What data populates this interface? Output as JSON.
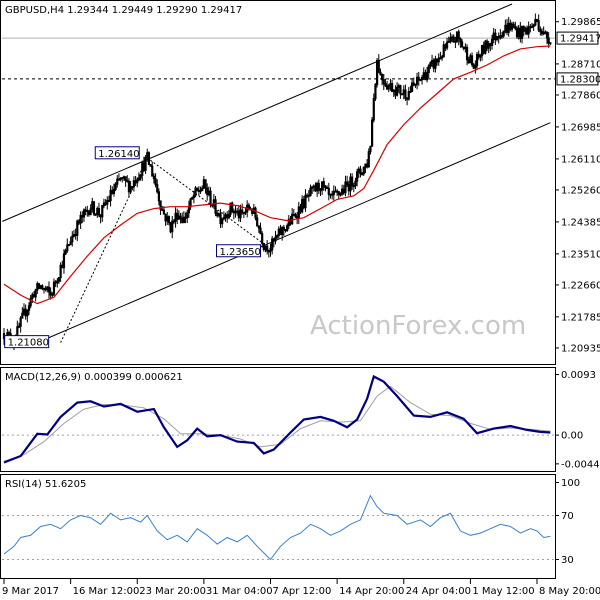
{
  "chart_data": {
    "type": "candlestick",
    "symbol_header": "GBPUSD,H4  1.29344 1.29449 1.29290 1.29417",
    "watermark": "ActionForex.com",
    "price_axis": {
      "ylim": [
        1.2055,
        1.3035
      ],
      "ticks": [
        "1.29865",
        "1.28710",
        "1.27860",
        "1.26985",
        "1.26110",
        "1.25260",
        "1.24385",
        "1.23510",
        "1.22660",
        "1.21785",
        "1.20935"
      ],
      "tick_values": [
        1.29865,
        1.2871,
        1.2786,
        1.26985,
        1.2611,
        1.2526,
        1.24385,
        1.2351,
        1.2266,
        1.21785,
        1.20935
      ]
    },
    "current_price": {
      "label": "1.29417",
      "value": 1.29417
    },
    "level_line": {
      "label": "1.28300",
      "value": 1.283
    },
    "time_axis": {
      "labels": [
        "9 Mar 2017",
        "16 Mar 12:00",
        "23 Mar 20:00",
        "31 Mar 04:00",
        "7 Apr 12:00",
        "14 Apr 20:00",
        "24 Apr 04:00",
        "1 May 12:00",
        "8 May 20:00"
      ],
      "bar_index": [
        0,
        40,
        80,
        120,
        160,
        200,
        240,
        280,
        320
      ]
    },
    "close_path": [
      [
        0,
        1.2133
      ],
      [
        6,
        1.2112
      ],
      [
        12,
        1.2185
      ],
      [
        18,
        1.2246
      ],
      [
        22,
        1.2262
      ],
      [
        28,
        1.2238
      ],
      [
        34,
        1.2315
      ],
      [
        40,
        1.2392
      ],
      [
        46,
        1.2445
      ],
      [
        52,
        1.2482
      ],
      [
        58,
        1.246
      ],
      [
        64,
        1.2512
      ],
      [
        70,
        1.2555
      ],
      [
        76,
        1.2535
      ],
      [
        82,
        1.258
      ],
      [
        86,
        1.2612
      ],
      [
        90,
        1.256
      ],
      [
        95,
        1.247
      ],
      [
        100,
        1.2425
      ],
      [
        104,
        1.2462
      ],
      [
        108,
        1.2445
      ],
      [
        114,
        1.251
      ],
      [
        120,
        1.2538
      ],
      [
        125,
        1.249
      ],
      [
        130,
        1.245
      ],
      [
        136,
        1.2475
      ],
      [
        142,
        1.2455
      ],
      [
        148,
        1.248
      ],
      [
        152,
        1.244
      ],
      [
        156,
        1.2378
      ],
      [
        160,
        1.2369
      ],
      [
        166,
        1.241
      ],
      [
        172,
        1.244
      ],
      [
        178,
        1.248
      ],
      [
        184,
        1.2515
      ],
      [
        190,
        1.254
      ],
      [
        196,
        1.25
      ],
      [
        202,
        1.252
      ],
      [
        208,
        1.2545
      ],
      [
        214,
        1.2575
      ],
      [
        218,
        1.26
      ],
      [
        220,
        1.2655
      ],
      [
        222,
        1.278
      ],
      [
        224,
        1.288
      ],
      [
        226,
        1.284
      ],
      [
        230,
        1.2815
      ],
      [
        236,
        1.28
      ],
      [
        242,
        1.279
      ],
      [
        248,
        1.282
      ],
      [
        254,
        1.285
      ],
      [
        260,
        1.288
      ],
      [
        266,
        1.292
      ],
      [
        272,
        1.2945
      ],
      [
        278,
        1.29
      ],
      [
        282,
        1.286
      ],
      [
        286,
        1.29
      ],
      [
        292,
        1.2935
      ],
      [
        298,
        1.296
      ],
      [
        304,
        1.2975
      ],
      [
        310,
        1.2955
      ],
      [
        316,
        1.297
      ],
      [
        320,
        1.299
      ],
      [
        324,
        1.295
      ],
      [
        328,
        1.2942
      ]
    ],
    "moving_average": [
      [
        0,
        1.2268
      ],
      [
        10,
        1.2238
      ],
      [
        20,
        1.2215
      ],
      [
        30,
        1.2232
      ],
      [
        40,
        1.229
      ],
      [
        50,
        1.2345
      ],
      [
        60,
        1.2395
      ],
      [
        70,
        1.243
      ],
      [
        80,
        1.2462
      ],
      [
        90,
        1.2475
      ],
      [
        100,
        1.248
      ],
      [
        110,
        1.248
      ],
      [
        120,
        1.2485
      ],
      [
        130,
        1.249
      ],
      [
        140,
        1.2483
      ],
      [
        150,
        1.247
      ],
      [
        160,
        1.245
      ],
      [
        170,
        1.2442
      ],
      [
        180,
        1.245
      ],
      [
        190,
        1.2475
      ],
      [
        200,
        1.25
      ],
      [
        210,
        1.251
      ],
      [
        216,
        1.253
      ],
      [
        222,
        1.258
      ],
      [
        230,
        1.265
      ],
      [
        240,
        1.2705
      ],
      [
        250,
        1.275
      ],
      [
        260,
        1.279
      ],
      [
        270,
        1.283
      ],
      [
        280,
        1.2848
      ],
      [
        290,
        1.2868
      ],
      [
        300,
        1.2893
      ],
      [
        310,
        1.2912
      ],
      [
        320,
        1.2918
      ],
      [
        328,
        1.292
      ]
    ],
    "channel": {
      "upper": [
        [
          -1,
          1.244
        ],
        [
          305,
          1.3035
        ]
      ],
      "lower": [
        [
          20,
          1.2108
        ],
        [
          328,
          1.271
        ]
      ]
    },
    "annotations": [
      {
        "label": "1.26140",
        "bar": 86,
        "value": 1.2614
      },
      {
        "label": "1.23650",
        "bar": 160,
        "value": 1.2365
      },
      {
        "label": "1.21080",
        "bar": 4,
        "value": 1.2108
      }
    ],
    "macd": {
      "title": "MACD(12,26,9) 0.000399 0.000621",
      "ylim": [
        -0.0052,
        0.01
      ],
      "ticks": [
        "0.0093",
        "0.00",
        "-0.004412"
      ],
      "tick_values": [
        0.0093,
        0.0,
        -0.004412
      ],
      "macd_line": [
        [
          0,
          -0.0042
        ],
        [
          10,
          -0.0032
        ],
        [
          20,
          0.0002
        ],
        [
          26,
          0.0001
        ],
        [
          34,
          0.0028
        ],
        [
          44,
          0.005
        ],
        [
          52,
          0.0052
        ],
        [
          60,
          0.0044
        ],
        [
          70,
          0.0048
        ],
        [
          80,
          0.0036
        ],
        [
          90,
          0.004
        ],
        [
          96,
          0.0012
        ],
        [
          104,
          -0.0018
        ],
        [
          110,
          -0.0008
        ],
        [
          116,
          0.001
        ],
        [
          122,
          -0.0002
        ],
        [
          130,
          0.0
        ],
        [
          140,
          -0.001
        ],
        [
          150,
          -0.0012
        ],
        [
          156,
          -0.0028
        ],
        [
          162,
          -0.0022
        ],
        [
          172,
          0.0004
        ],
        [
          180,
          0.0024
        ],
        [
          190,
          0.0028
        ],
        [
          198,
          0.0022
        ],
        [
          206,
          0.0012
        ],
        [
          212,
          0.0024
        ],
        [
          218,
          0.0056
        ],
        [
          222,
          0.009
        ],
        [
          228,
          0.0082
        ],
        [
          236,
          0.006
        ],
        [
          246,
          0.003
        ],
        [
          256,
          0.0028
        ],
        [
          266,
          0.0035
        ],
        [
          276,
          0.0025
        ],
        [
          284,
          0.0003
        ],
        [
          294,
          0.001
        ],
        [
          304,
          0.0014
        ],
        [
          314,
          0.0008
        ],
        [
          322,
          0.0005
        ],
        [
          328,
          0.0004
        ]
      ],
      "signal_line": [
        [
          0,
          -0.004
        ],
        [
          12,
          -0.003
        ],
        [
          24,
          -0.001
        ],
        [
          36,
          0.0018
        ],
        [
          48,
          0.004
        ],
        [
          60,
          0.0047
        ],
        [
          72,
          0.0046
        ],
        [
          84,
          0.0042
        ],
        [
          96,
          0.0025
        ],
        [
          106,
          0.0002
        ],
        [
          118,
          0.0002
        ],
        [
          130,
          0.0
        ],
        [
          142,
          -0.0006
        ],
        [
          154,
          -0.0018
        ],
        [
          166,
          -0.0014
        ],
        [
          178,
          0.001
        ],
        [
          190,
          0.0022
        ],
        [
          202,
          0.002
        ],
        [
          214,
          0.0022
        ],
        [
          224,
          0.006
        ],
        [
          232,
          0.0075
        ],
        [
          244,
          0.005
        ],
        [
          256,
          0.0032
        ],
        [
          268,
          0.003
        ],
        [
          280,
          0.0018
        ],
        [
          292,
          0.0009
        ],
        [
          304,
          0.0011
        ],
        [
          316,
          0.0009
        ],
        [
          328,
          0.0006
        ]
      ]
    },
    "rsi": {
      "title": "RSI(14) 51.6205",
      "ylim": [
        15,
        105
      ],
      "ticks": [
        "100",
        "70",
        "30"
      ],
      "tick_values": [
        100,
        70,
        30
      ],
      "line": [
        [
          0,
          35
        ],
        [
          6,
          42
        ],
        [
          10,
          50
        ],
        [
          16,
          52
        ],
        [
          22,
          60
        ],
        [
          28,
          62
        ],
        [
          34,
          58
        ],
        [
          40,
          66
        ],
        [
          46,
          70
        ],
        [
          52,
          68
        ],
        [
          58,
          62
        ],
        [
          64,
          72
        ],
        [
          70,
          66
        ],
        [
          76,
          68
        ],
        [
          82,
          64
        ],
        [
          86,
          70
        ],
        [
          92,
          56
        ],
        [
          98,
          48
        ],
        [
          104,
          52
        ],
        [
          110,
          46
        ],
        [
          116,
          58
        ],
        [
          122,
          52
        ],
        [
          128,
          44
        ],
        [
          134,
          50
        ],
        [
          140,
          46
        ],
        [
          146,
          52
        ],
        [
          152,
          42
        ],
        [
          156,
          36
        ],
        [
          160,
          30
        ],
        [
          166,
          42
        ],
        [
          172,
          50
        ],
        [
          178,
          54
        ],
        [
          184,
          62
        ],
        [
          190,
          58
        ],
        [
          196,
          52
        ],
        [
          202,
          56
        ],
        [
          208,
          62
        ],
        [
          214,
          66
        ],
        [
          220,
          88
        ],
        [
          224,
          78
        ],
        [
          228,
          72
        ],
        [
          236,
          70
        ],
        [
          242,
          62
        ],
        [
          250,
          66
        ],
        [
          256,
          60
        ],
        [
          262,
          68
        ],
        [
          268,
          72
        ],
        [
          274,
          56
        ],
        [
          280,
          52
        ],
        [
          286,
          54
        ],
        [
          292,
          58
        ],
        [
          298,
          62
        ],
        [
          304,
          60
        ],
        [
          310,
          54
        ],
        [
          316,
          58
        ],
        [
          320,
          56
        ],
        [
          324,
          50
        ],
        [
          328,
          51
        ]
      ]
    }
  }
}
